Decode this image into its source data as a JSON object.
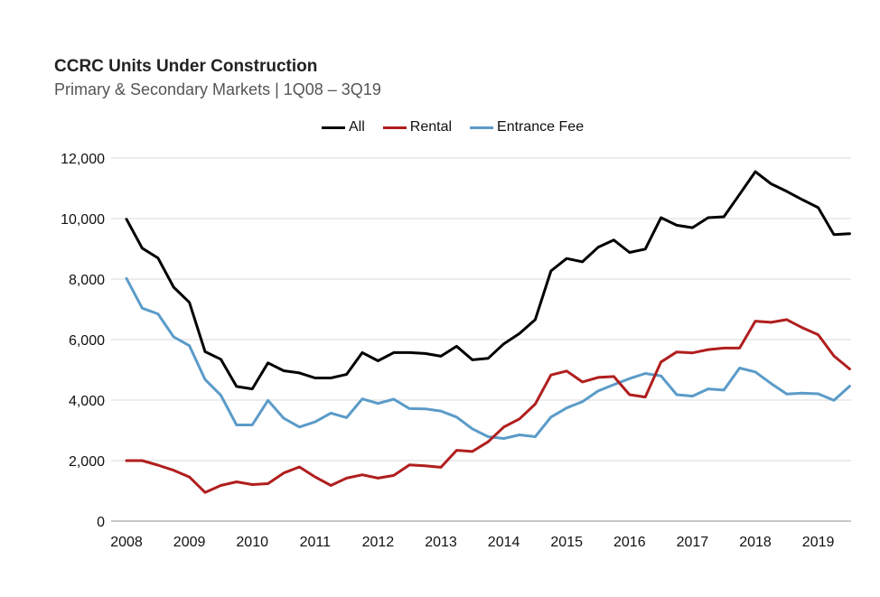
{
  "chart_data": {
    "type": "line",
    "title": "CCRC Units Under Construction",
    "subtitle": "Primary & Secondary Markets | 1Q08 – 3Q19",
    "xlabel": "",
    "ylabel": "",
    "ylim": [
      0,
      12000
    ],
    "yticks": [
      0,
      2000,
      4000,
      6000,
      8000,
      10000,
      12000
    ],
    "ytick_labels": [
      "0",
      "2,000",
      "4,000",
      "6,000",
      "8,000",
      "10,000",
      "12,000"
    ],
    "xticks": [
      "2008",
      "2009",
      "2010",
      "2011",
      "2012",
      "2013",
      "2014",
      "2015",
      "2016",
      "2017",
      "2018",
      "2019"
    ],
    "grid": true,
    "legend_position": "top",
    "x_start_year": 2008,
    "quarters_per_year": 4,
    "series": [
      {
        "name": "All",
        "color": "#000000",
        "values": [
          9980,
          9020,
          8700,
          7730,
          7230,
          5600,
          5350,
          4450,
          4370,
          5230,
          4970,
          4900,
          4730,
          4730,
          4850,
          5570,
          5300,
          5570,
          5570,
          5540,
          5450,
          5780,
          5330,
          5380,
          5860,
          6200,
          6660,
          8270,
          8680,
          8570,
          9050,
          9290,
          8880,
          8990,
          10030,
          9780,
          9700,
          10030,
          10060,
          10800,
          11550,
          11150,
          10900,
          10620,
          10360,
          9470,
          9500
        ]
      },
      {
        "name": "Rental",
        "color": "#b01e1e",
        "values": [
          2000,
          2000,
          1850,
          1680,
          1460,
          950,
          1180,
          1300,
          1210,
          1240,
          1590,
          1790,
          1460,
          1180,
          1420,
          1530,
          1420,
          1510,
          1860,
          1830,
          1780,
          2340,
          2300,
          2620,
          3110,
          3380,
          3870,
          4830,
          4960,
          4600,
          4750,
          4780,
          4180,
          4100,
          5260,
          5590,
          5560,
          5670,
          5720,
          5720,
          6610,
          6570,
          6660,
          6390,
          6160,
          5460,
          5030
        ]
      },
      {
        "name": "Entrance Fee",
        "color": "#5b9bc8",
        "values": [
          8020,
          7040,
          6850,
          6090,
          5800,
          4680,
          4160,
          3180,
          3180,
          3990,
          3400,
          3110,
          3280,
          3570,
          3420,
          4040,
          3890,
          4030,
          3720,
          3710,
          3640,
          3440,
          3050,
          2790,
          2730,
          2850,
          2790,
          3440,
          3740,
          3950,
          4300,
          4510,
          4710,
          4880,
          4800,
          4180,
          4130,
          4370,
          4330,
          5060,
          4930,
          4550,
          4200,
          4230,
          4210,
          3990,
          4460
        ]
      }
    ]
  }
}
